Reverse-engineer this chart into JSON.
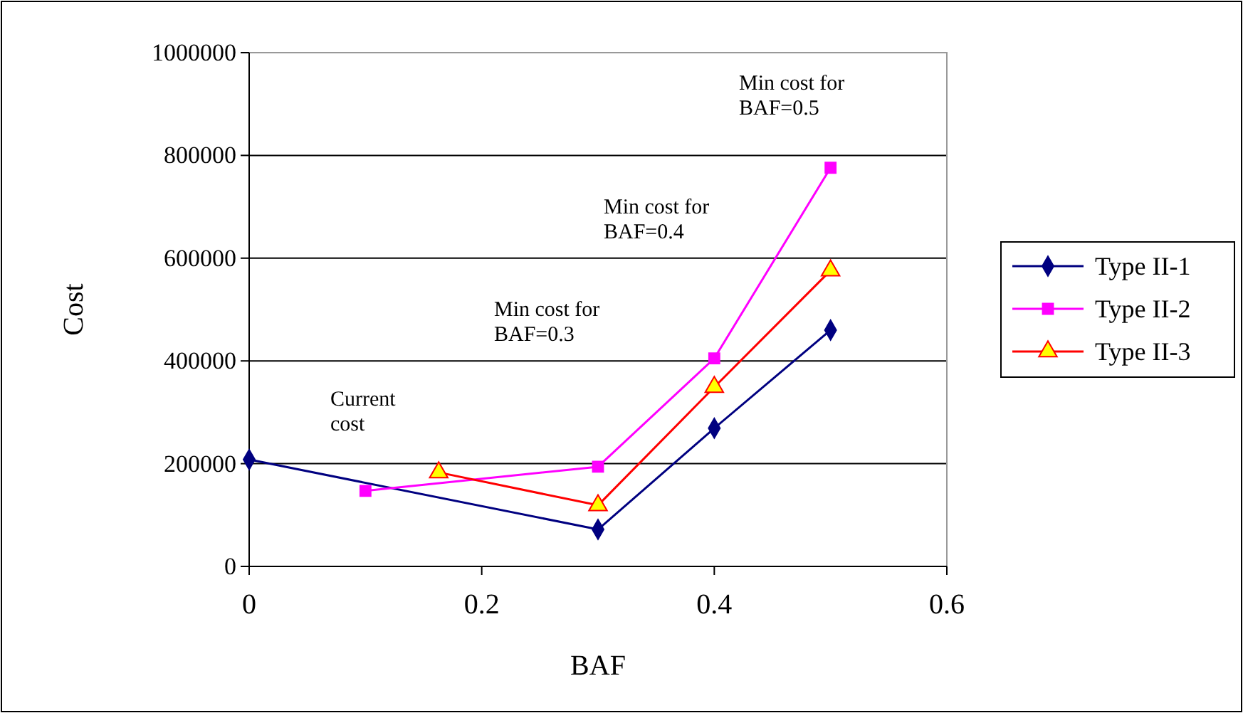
{
  "chart_data": {
    "type": "line",
    "xlabel": "BAF",
    "ylabel": "Cost",
    "xlim": [
      0,
      0.6
    ],
    "xticks": [
      0,
      0.2,
      0.4,
      0.6
    ],
    "ylim": [
      0,
      1000000
    ],
    "yticks": [
      0,
      200000,
      400000,
      600000,
      800000,
      1000000
    ],
    "grid": "y",
    "legend": "right",
    "line_style": "solid",
    "series": [
      {
        "name": "Type II-1",
        "color": "#000080",
        "marker": "diamond",
        "x": [
          0,
          0.3,
          0.4,
          0.5
        ],
        "values": [
          208000,
          72000,
          269000,
          460000
        ]
      },
      {
        "name": "Type II-2",
        "color": "#ff00ff",
        "marker": "square",
        "x": [
          0.1,
          0.3,
          0.4,
          0.5
        ],
        "values": [
          147000,
          194000,
          405000,
          776000
        ]
      },
      {
        "name": "Type II-3",
        "color": "#ff0000",
        "marker": "triangle",
        "x": [
          0.163,
          0.3,
          0.4,
          0.5
        ],
        "values": [
          183000,
          119000,
          349000,
          576000
        ]
      }
    ],
    "annotations": [
      "Current\ncost",
      "Min cost for\nBAF=0.3",
      "Min cost for\nBAF=0.4",
      "Min cost for\nBAF=0.5"
    ]
  }
}
